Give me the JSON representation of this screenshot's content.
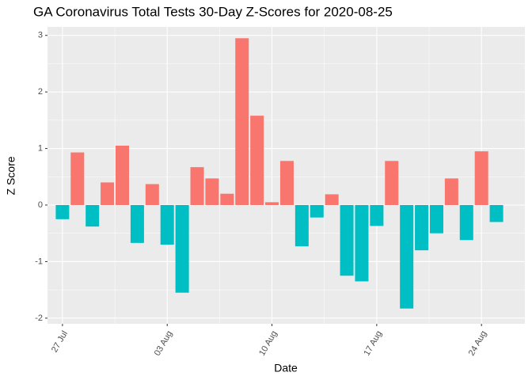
{
  "chart_data": {
    "type": "bar",
    "title": "GA Coronavirus Total Tests 30-Day Z-Scores for 2020-08-25",
    "x_label": "Date",
    "y_label": "Z Score",
    "categories": [
      "27 Jul",
      null,
      null,
      null,
      null,
      null,
      null,
      "03 Aug",
      null,
      null,
      null,
      null,
      null,
      null,
      "10 Aug",
      null,
      null,
      null,
      null,
      null,
      null,
      "17 Aug",
      null,
      null,
      null,
      null,
      null,
      null,
      "24 Aug",
      null
    ],
    "values": [
      -0.25,
      0.93,
      -0.38,
      0.4,
      1.05,
      -0.67,
      0.37,
      -0.7,
      -1.55,
      0.67,
      0.47,
      0.2,
      2.95,
      1.58,
      0.05,
      0.78,
      -0.73,
      -0.22,
      0.19,
      -1.25,
      -1.35,
      -0.37,
      0.78,
      -1.83,
      -0.8,
      -0.5,
      0.47,
      -0.62,
      0.95,
      -0.3
    ],
    "positive_color": "#F8766D",
    "negative_color": "#00BFC4",
    "ylim": [
      -2.1,
      3.15
    ],
    "yticks": [
      -2,
      -1,
      0,
      1,
      2,
      3
    ],
    "grid": true
  }
}
